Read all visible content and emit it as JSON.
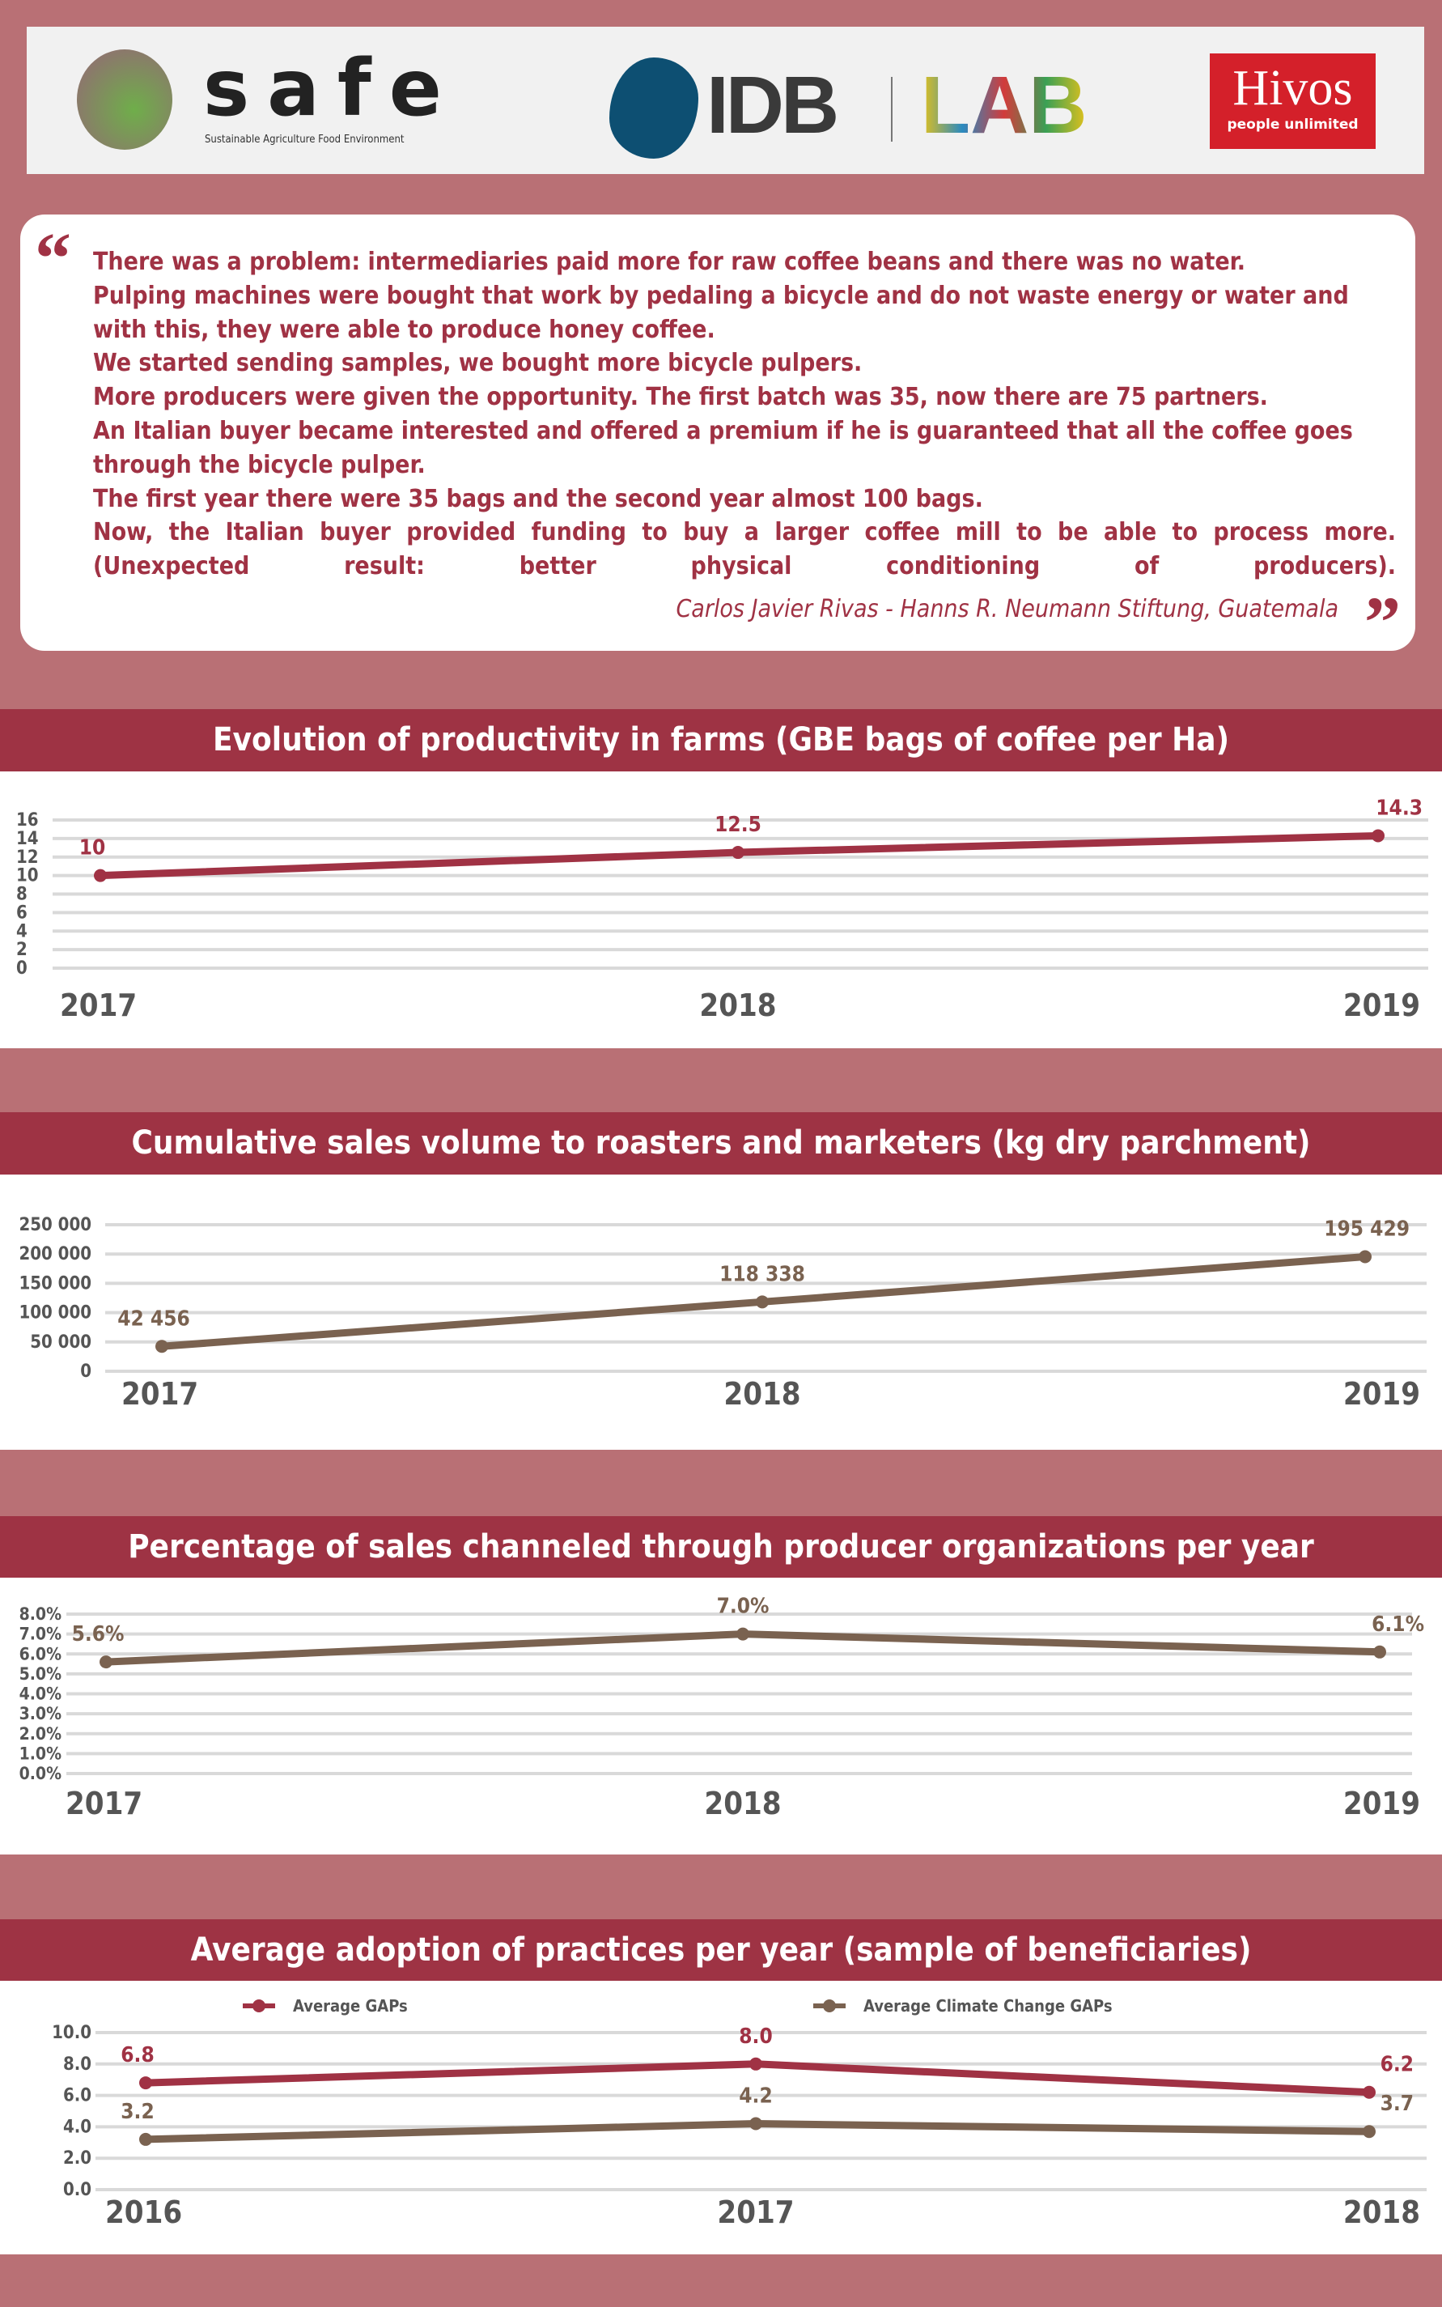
{
  "logos": {
    "safe": "safe",
    "safe_subtitle": "Sustainable Agriculture Food Environment",
    "idb": "IDB",
    "lab": "LAB",
    "hivos": "Hivos",
    "hivos_tagline": "people unlimited"
  },
  "quote": {
    "lines": [
      "There was a problem: intermediaries paid more for raw coffee beans and there was no water.",
      "Pulping machines were bought that work by pedaling a bicycle and do not waste energy or water and with this, they were able to produce honey coffee.",
      "We started sending samples, we bought more bicycle pulpers.",
      "More producers were given the opportunity. The first batch was 35, now there are 75 partners.",
      "An Italian buyer became interested and offered a premium if he is guaranteed that all the coffee goes through the bicycle pulper.",
      "The first year there were 35 bags and the second year almost 100 bags.",
      "Now, the Italian buyer provided funding to buy a larger coffee mill to be able to process more. (Unexpected result: better physical conditioning of producers)."
    ],
    "author": "Carlos Javier Rivas - Hanns R. Neumann Stiftung, Guatemala"
  },
  "colors": {
    "background": "#b97075",
    "header": "#9e3344",
    "red_series": "#a03244",
    "brown_series": "#7a6250",
    "grid": "#d9d9d9",
    "axis_text": "#555555"
  },
  "chart_data": [
    {
      "type": "line",
      "title": "Evolution of productivity in farms (GBE bags of coffee per Ha)",
      "categories": [
        "2017",
        "2018",
        "2019"
      ],
      "series": [
        {
          "values": [
            10,
            12.5,
            14.3
          ],
          "labels": [
            "10",
            "12.5",
            "14.3"
          ],
          "color": "#a03244"
        }
      ],
      "yticks": [
        "0",
        "2",
        "4",
        "6",
        "8",
        "10",
        "12",
        "14",
        "16"
      ],
      "ylim": [
        0,
        16
      ],
      "grid": true
    },
    {
      "type": "line",
      "title": "Cumulative sales volume to roasters and marketers (kg dry parchment)",
      "categories": [
        "2017",
        "2018",
        "2019"
      ],
      "series": [
        {
          "values": [
            42456,
            118338,
            195429
          ],
          "labels": [
            "42 456",
            "118 338",
            "195 429"
          ],
          "color": "#7a6250"
        }
      ],
      "yticks": [
        "0",
        "50 000",
        "100 000",
        "150 000",
        "200 000",
        "250 000"
      ],
      "ylim": [
        0,
        250000
      ],
      "grid": true
    },
    {
      "type": "line",
      "title": "Percentage of sales channeled through producer organizations per year",
      "categories": [
        "2017",
        "2018",
        "2019"
      ],
      "series": [
        {
          "values": [
            5.6,
            7.0,
            6.1
          ],
          "labels": [
            "5.6%",
            "7.0%",
            "6.1%"
          ],
          "color": "#7a6250"
        }
      ],
      "yticks": [
        "0.0%",
        "1.0%",
        "2.0%",
        "3.0%",
        "4.0%",
        "5.0%",
        "6.0%",
        "7.0%",
        "8.0%"
      ],
      "ylim": [
        0,
        8
      ],
      "grid": true
    },
    {
      "type": "line",
      "title": "Average adoption of practices per year (sample of beneficiaries)",
      "categories": [
        "2016",
        "2017",
        "2018"
      ],
      "series": [
        {
          "name": "Average GAPs",
          "values": [
            6.8,
            8.0,
            6.2
          ],
          "labels": [
            "6.8",
            "8.0",
            "6.2"
          ],
          "color": "#a03244"
        },
        {
          "name": "Average Climate Change GAPs",
          "values": [
            3.2,
            4.2,
            3.7
          ],
          "labels": [
            "3.2",
            "4.2",
            "3.7"
          ],
          "color": "#7a6250"
        }
      ],
      "yticks": [
        "0.0",
        "2.0",
        "4.0",
        "6.0",
        "8.0",
        "10.0"
      ],
      "ylim": [
        0,
        10
      ],
      "grid": true,
      "legend": "top"
    }
  ]
}
